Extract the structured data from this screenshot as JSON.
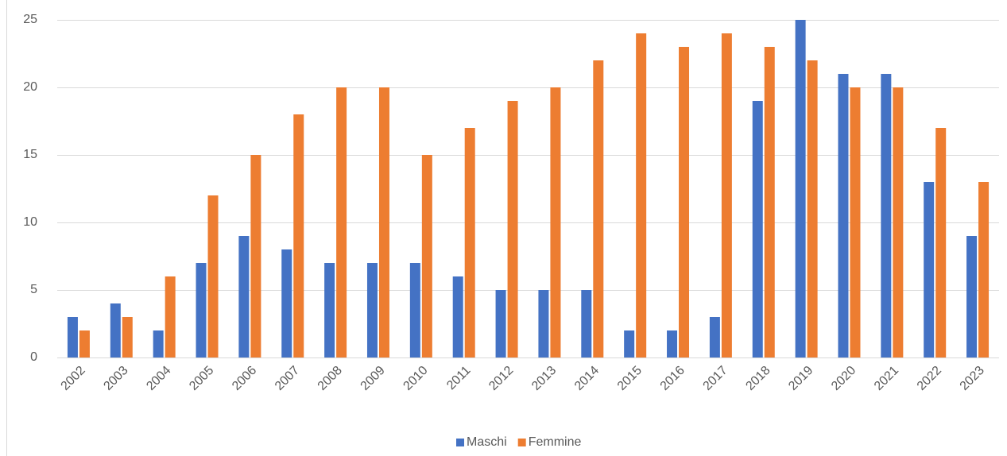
{
  "chart_data": {
    "type": "bar",
    "categories": [
      "2002",
      "2003",
      "2004",
      "2005",
      "2006",
      "2007",
      "2008",
      "2009",
      "2010",
      "2011",
      "2012",
      "2013",
      "2014",
      "2015",
      "2016",
      "2017",
      "2018",
      "2019",
      "2020",
      "2021",
      "2022",
      "2023"
    ],
    "series": [
      {
        "name": "Maschi",
        "color": "#4472c4",
        "values": [
          3,
          4,
          2,
          7,
          9,
          8,
          7,
          7,
          7,
          6,
          5,
          5,
          5,
          2,
          2,
          3,
          19,
          25,
          21,
          21,
          13,
          9
        ]
      },
      {
        "name": "Femmine",
        "color": "#ed7d31",
        "values": [
          2,
          3,
          6,
          12,
          15,
          18,
          20,
          20,
          15,
          17,
          19,
          20,
          22,
          24,
          23,
          24,
          23,
          22,
          20,
          20,
          17,
          13
        ]
      }
    ],
    "ylim": [
      0,
      25
    ],
    "yticks": [
      0,
      5,
      10,
      15,
      20,
      25
    ],
    "grid": true,
    "legend": "bottom"
  }
}
